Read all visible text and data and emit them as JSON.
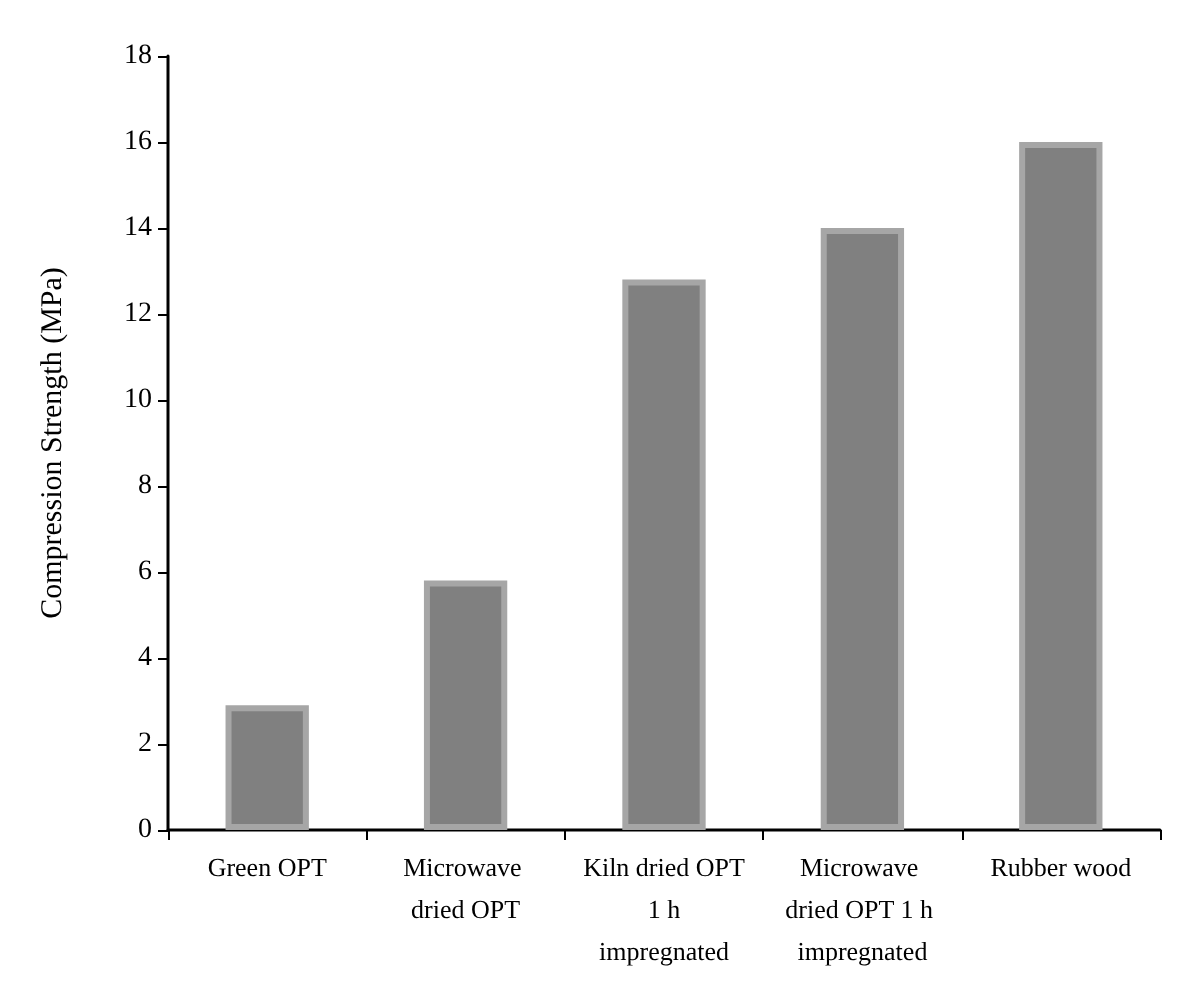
{
  "chart_data": {
    "type": "bar",
    "ylabel": "Compression Strength (MPa)",
    "categories": [
      "Green OPT",
      "Microwave dried OPT",
      "Kiln dried OPT 1 h impregnated",
      "Microwave dried OPT 1 h impregnated",
      "Rubber wood"
    ],
    "values": [
      2.9,
      5.8,
      12.8,
      14.0,
      16.0
    ],
    "color": "#808080",
    "ylim": [
      0,
      18
    ],
    "yticks": [
      0,
      2,
      4,
      6,
      8,
      10,
      12,
      14,
      16,
      18
    ],
    "grid": false
  }
}
